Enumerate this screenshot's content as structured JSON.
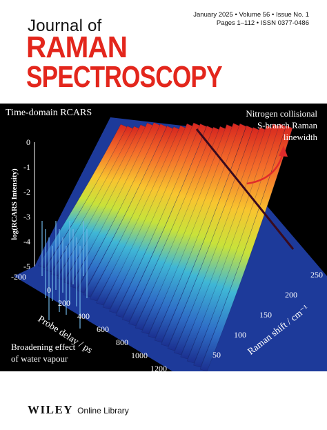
{
  "header": {
    "journal_prefix": "Journal of",
    "title_line1": "RAMAN",
    "title_line2": "SPECTROSCOPY",
    "issue_line1": "January 2025 • Volume 56 • Issue No. 1",
    "issue_line2": "Pages 1–112 • ISSN 0377-0486"
  },
  "cover_art": {
    "top_left_label": "Time-domain RCARS",
    "annotation_top": [
      "Nitrogen collisional",
      "S-branch Raman",
      "linewidth"
    ],
    "annotation_bottom": [
      "Broadening effect",
      "of water vapour"
    ],
    "z_axis_label": "log(RCARS Intensity)",
    "z_ticks": [
      "0",
      "-1",
      "-2",
      "-3",
      "-4",
      "-5"
    ],
    "delay_axis_label": "Probe delay / ps",
    "delay_ticks": [
      "-200",
      "0",
      "200",
      "400",
      "600",
      "800",
      "1000",
      "1200"
    ],
    "shift_axis_label": "Raman shift / cm⁻¹",
    "shift_ticks": [
      "50",
      "100",
      "150",
      "200",
      "250"
    ]
  },
  "footer": {
    "publisher": "WILEY",
    "platform": "Online Library"
  }
}
